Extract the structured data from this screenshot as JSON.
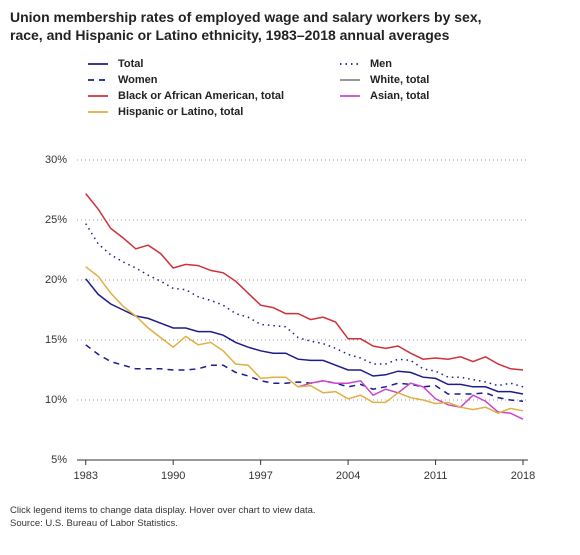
{
  "chart_data": {
    "type": "line",
    "title": [
      "Union membership rates of employed wage and salary workers by sex,",
      "race, and Hispanic or Latino ethnicity, 1983–2018 annual averages"
    ],
    "notes": [
      "Click legend items to change data display. Hover over chart to view data.",
      "Source: U.S. Bureau of Labor Statistics."
    ],
    "x": [
      1983,
      1984,
      1985,
      1986,
      1987,
      1988,
      1989,
      1990,
      1991,
      1992,
      1993,
      1994,
      1995,
      1996,
      1997,
      1998,
      1999,
      2000,
      2001,
      2002,
      2003,
      2004,
      2005,
      2006,
      2007,
      2008,
      2009,
      2010,
      2011,
      2012,
      2013,
      2014,
      2015,
      2016,
      2017,
      2018
    ],
    "xlim": [
      1982.3,
      2018.4
    ],
    "xticks": [
      1983,
      1990,
      1997,
      2004,
      2011,
      2018
    ],
    "ylim": [
      5,
      30
    ],
    "yticks": [
      {
        "value": 5,
        "label": "5%"
      },
      {
        "value": 10,
        "label": "10%"
      },
      {
        "value": 15,
        "label": "15%"
      },
      {
        "value": 20,
        "label": "20%"
      },
      {
        "value": 25,
        "label": "25%"
      },
      {
        "value": 30,
        "label": "30%"
      }
    ],
    "grid": true,
    "series": [
      {
        "name": "Total",
        "color": "#1c1c8c",
        "dash": "solid",
        "visible": true,
        "values": [
          20.1,
          18.8,
          18.0,
          17.5,
          17.0,
          16.8,
          16.4,
          16.0,
          16.0,
          15.7,
          15.7,
          15.4,
          14.8,
          14.4,
          14.1,
          13.9,
          13.9,
          13.4,
          13.3,
          13.3,
          12.9,
          12.5,
          12.5,
          12.0,
          12.1,
          12.4,
          12.3,
          11.9,
          11.8,
          11.3,
          11.3,
          11.1,
          11.1,
          10.7,
          10.7,
          10.5
        ]
      },
      {
        "name": "Men",
        "color": "#1c1c8c",
        "dash": "dotted",
        "visible": true,
        "values": [
          24.7,
          23.0,
          22.1,
          21.5,
          21.0,
          20.4,
          19.9,
          19.3,
          19.2,
          18.6,
          18.3,
          17.9,
          17.2,
          16.9,
          16.3,
          16.2,
          16.1,
          15.2,
          14.9,
          14.7,
          14.3,
          13.8,
          13.5,
          13.0,
          13.0,
          13.4,
          13.3,
          12.6,
          12.4,
          11.9,
          11.9,
          11.7,
          11.5,
          11.2,
          11.4,
          11.1
        ]
      },
      {
        "name": "Women",
        "color": "#1c1c8c",
        "dash": "dashed",
        "visible": true,
        "values": [
          14.6,
          13.8,
          13.2,
          12.9,
          12.6,
          12.6,
          12.6,
          12.5,
          12.5,
          12.6,
          12.9,
          12.9,
          12.3,
          12.0,
          11.6,
          11.4,
          11.4,
          11.5,
          11.4,
          11.6,
          11.4,
          11.1,
          11.3,
          10.9,
          11.1,
          11.4,
          11.3,
          11.1,
          11.2,
          10.5,
          10.5,
          10.5,
          10.6,
          10.2,
          10.0,
          9.9
        ]
      },
      {
        "name": "White, total",
        "color": "#8a8a8a",
        "dash": "solid",
        "visible": false
      },
      {
        "name": "Black or African American, total",
        "color": "#d0303a",
        "dash": "solid",
        "visible": true,
        "values": [
          27.2,
          25.9,
          24.3,
          23.5,
          22.6,
          22.9,
          22.2,
          21.0,
          21.3,
          21.2,
          20.8,
          20.6,
          19.9,
          18.9,
          17.9,
          17.7,
          17.2,
          17.2,
          16.7,
          16.9,
          16.5,
          15.1,
          15.1,
          14.5,
          14.3,
          14.5,
          13.9,
          13.4,
          13.5,
          13.4,
          13.6,
          13.2,
          13.6,
          13.0,
          12.6,
          12.5
        ]
      },
      {
        "name": "Asian, total",
        "color": "#cc44cc",
        "dash": "solid",
        "visible": true,
        "values": [
          null,
          null,
          null,
          null,
          null,
          null,
          null,
          null,
          null,
          null,
          null,
          null,
          null,
          null,
          null,
          null,
          null,
          11.1,
          11.4,
          11.6,
          11.4,
          11.4,
          11.6,
          10.4,
          10.9,
          10.6,
          11.4,
          11.1,
          10.1,
          9.6,
          9.4,
          10.4,
          9.9,
          9.0,
          8.9,
          8.4
        ]
      },
      {
        "name": "Hispanic or Latino, total",
        "color": "#e0b040",
        "dash": "solid",
        "visible": true,
        "values": [
          21.1,
          20.3,
          18.9,
          17.8,
          17.0,
          16.0,
          15.2,
          14.4,
          15.3,
          14.6,
          14.8,
          14.1,
          13.0,
          12.9,
          11.8,
          11.9,
          11.9,
          11.1,
          11.2,
          10.6,
          10.7,
          10.1,
          10.4,
          9.8,
          9.8,
          10.6,
          10.2,
          10.0,
          9.7,
          9.8,
          9.4,
          9.2,
          9.4,
          8.9,
          9.3,
          9.1
        ]
      }
    ]
  }
}
